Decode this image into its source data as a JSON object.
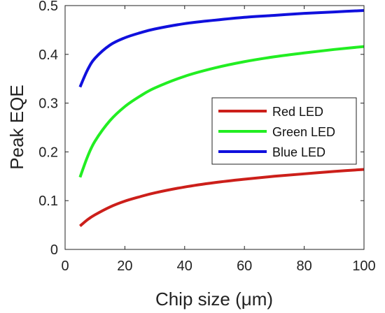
{
  "chart_data": {
    "type": "line",
    "title": "",
    "xlabel": "Chip size (μm)",
    "ylabel": "Peak EQE",
    "xlim": [
      0,
      100
    ],
    "ylim": [
      0,
      0.5
    ],
    "xticks": [
      0,
      20,
      40,
      60,
      80,
      100
    ],
    "yticks": [
      0,
      0.1,
      0.2,
      0.3,
      0.4,
      0.5
    ],
    "xtick_labels": [
      "0",
      "20",
      "40",
      "60",
      "80",
      "100"
    ],
    "ytick_labels": [
      "0",
      "0.1",
      "0.2",
      "0.3",
      "0.4",
      "0.5"
    ],
    "grid": false,
    "legend_position": "center-right",
    "series": [
      {
        "name": "Red LED",
        "color": "#cc1f1a",
        "x": [
          5,
          7.5,
          10,
          15,
          20,
          25,
          30,
          40,
          50,
          60,
          70,
          80,
          90,
          100
        ],
        "y": [
          0.048,
          0.061,
          0.071,
          0.087,
          0.099,
          0.108,
          0.116,
          0.128,
          0.137,
          0.144,
          0.15,
          0.155,
          0.16,
          0.164
        ]
      },
      {
        "name": "Green LED",
        "color": "#22ee22",
        "x": [
          5,
          7.5,
          10,
          15,
          20,
          25,
          30,
          40,
          50,
          60,
          70,
          80,
          90,
          100
        ],
        "y": [
          0.148,
          0.19,
          0.222,
          0.264,
          0.293,
          0.314,
          0.331,
          0.355,
          0.372,
          0.385,
          0.395,
          0.403,
          0.41,
          0.416
        ]
      },
      {
        "name": "Blue LED",
        "color": "#1010dd",
        "x": [
          5,
          7.5,
          10,
          15,
          20,
          25,
          30,
          40,
          50,
          60,
          70,
          80,
          90,
          100
        ],
        "y": [
          0.333,
          0.368,
          0.392,
          0.419,
          0.434,
          0.444,
          0.452,
          0.463,
          0.47,
          0.476,
          0.48,
          0.484,
          0.487,
          0.49
        ]
      }
    ]
  }
}
